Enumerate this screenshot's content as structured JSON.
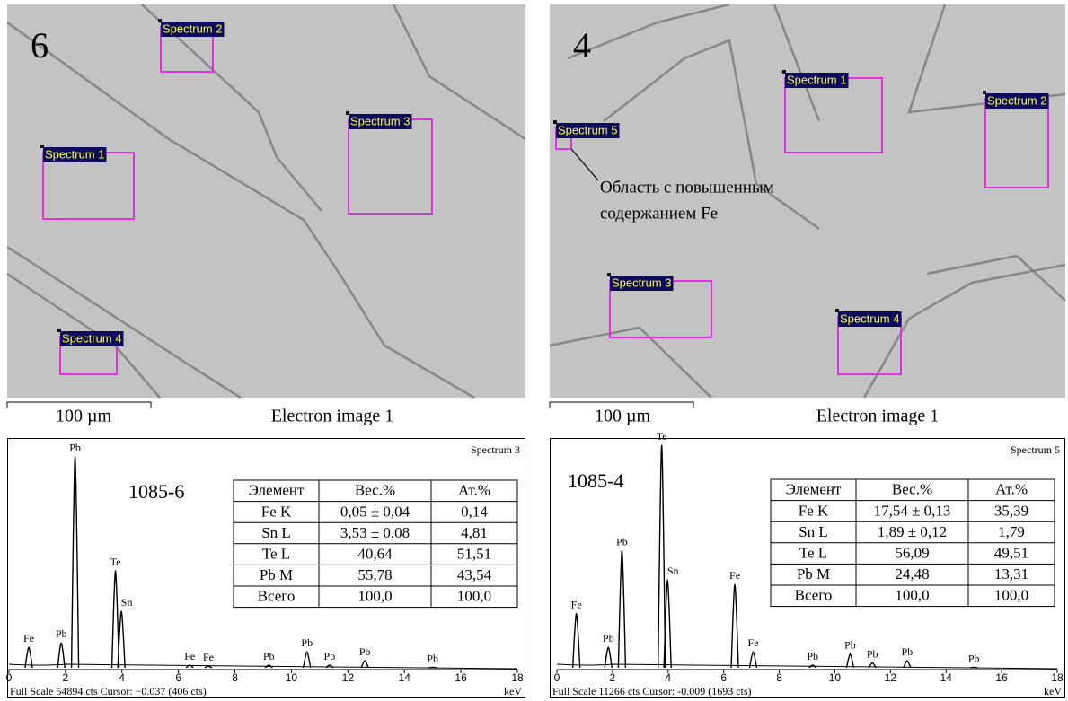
{
  "panels": [
    {
      "image": {
        "label": "6",
        "spectra": [
          "Spectrum 2",
          "Spectrum 1",
          "Spectrum 3",
          "Spectrum 4"
        ],
        "scale_bar": "100 µm",
        "caption": "Electron image 1"
      },
      "spectrum": {
        "title": "Spectrum 3",
        "sample": "1085-6",
        "xlim": [
          0,
          18
        ],
        "xticks": [
          0,
          2,
          4,
          6,
          8,
          10,
          12,
          14,
          16,
          18
        ],
        "x_unit": "keV",
        "footer": "Full Scale 54894 cts Cursor: −0.037 (406 cts)",
        "peaks": [
          {
            "label": "Fe",
            "x": 0.7,
            "y": 0.1
          },
          {
            "label": "Pb",
            "x": 1.85,
            "y": 0.12
          },
          {
            "label": "Pb",
            "x": 2.34,
            "y": 0.95
          },
          {
            "label": "Te",
            "x": 3.77,
            "y": 0.44
          },
          {
            "label": "Sn",
            "x": 3.98,
            "y": 0.26
          },
          {
            "label": "Fe",
            "x": 6.4,
            "y": 0.02
          },
          {
            "label": "Fe",
            "x": 7.06,
            "y": 0.015
          },
          {
            "label": "Pb",
            "x": 9.2,
            "y": 0.02
          },
          {
            "label": "Pb",
            "x": 10.55,
            "y": 0.08
          },
          {
            "label": "Pb",
            "x": 11.35,
            "y": 0.02
          },
          {
            "label": "Pb",
            "x": 12.6,
            "y": 0.04
          },
          {
            "label": "Pb",
            "x": 15,
            "y": 0.01
          }
        ],
        "table": {
          "header": [
            "Элемент",
            "Вес.%",
            "Ат.%"
          ],
          "rows": [
            [
              "Fe K",
              "0,05 ± 0,04",
              "0,14"
            ],
            [
              "Sn L",
              "3,53 ± 0,08",
              "4,81"
            ],
            [
              "Te L",
              "40,64",
              "51,51"
            ],
            [
              "Pb M",
              "55,78",
              "43,54"
            ],
            [
              "Всего",
              "100,0",
              "100,0"
            ]
          ]
        }
      }
    },
    {
      "image": {
        "label": "4",
        "spectra": [
          "Spectrum 1",
          "Spectrum 2",
          "Spectrum 5",
          "Spectrum 3",
          "Spectrum 4"
        ],
        "annotation": [
          "Область с повышенным",
          "содержанием Fe"
        ],
        "scale_bar": "100 µm",
        "caption": "Electron image 1"
      },
      "spectrum": {
        "title": "Spectrum 5",
        "sample": "1085-4",
        "xlim": [
          0,
          18
        ],
        "xticks": [
          0,
          2,
          4,
          6,
          8,
          10,
          12,
          14,
          16,
          18
        ],
        "x_unit": "keV",
        "footer": "Full Scale 11266 cts Cursor: -0.009 (1693 cts)",
        "peaks": [
          {
            "label": "Fe",
            "x": 0.7,
            "y": 0.25
          },
          {
            "label": "Pb",
            "x": 1.85,
            "y": 0.1
          },
          {
            "label": "Pb",
            "x": 2.34,
            "y": 0.53
          },
          {
            "label": "Te",
            "x": 3.77,
            "y": 1.0
          },
          {
            "label": "Sn",
            "x": 3.98,
            "y": 0.4
          },
          {
            "label": "Fe",
            "x": 6.4,
            "y": 0.38
          },
          {
            "label": "Fe",
            "x": 7.06,
            "y": 0.08
          },
          {
            "label": "Pb",
            "x": 9.2,
            "y": 0.02
          },
          {
            "label": "Pb",
            "x": 10.55,
            "y": 0.07
          },
          {
            "label": "Pb",
            "x": 11.35,
            "y": 0.03
          },
          {
            "label": "Pb",
            "x": 12.6,
            "y": 0.04
          },
          {
            "label": "Pb",
            "x": 15,
            "y": 0.01
          }
        ],
        "table": {
          "header": [
            "Элемент",
            "Вес.%",
            "Ат.%"
          ],
          "rows": [
            [
              "Fe K",
              "17,54 ± 0,13",
              "35,39"
            ],
            [
              "Sn L",
              "1,89 ± 0,12",
              "1,79"
            ],
            [
              "Te L",
              "56,09",
              "49,51"
            ],
            [
              "Pb M",
              "24,48",
              "13,31"
            ],
            [
              "Всего",
              "100,0",
              "100,0"
            ]
          ]
        }
      }
    }
  ]
}
